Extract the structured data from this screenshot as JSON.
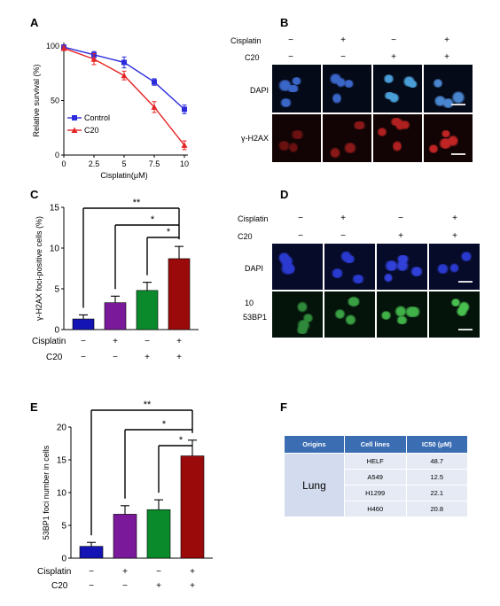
{
  "panels": {
    "A": "A",
    "B": "B",
    "C": "C",
    "D": "D",
    "E": "E",
    "F": "F"
  },
  "chart_data": [
    {
      "type": "line",
      "panel": "A",
      "xlabel": "Cisplatin(μM)",
      "ylabel": "Relative survival (%)",
      "x": [
        0,
        2.5,
        5,
        7.5,
        10
      ],
      "x_ticks": [
        "0",
        "2.5",
        "5",
        "7.5",
        "10"
      ],
      "y_ticks": [
        "0",
        "50",
        "100"
      ],
      "ylim": [
        0,
        100
      ],
      "series": [
        {
          "name": "Control",
          "color": "#2b2bdc",
          "marker": "square",
          "values": [
            99,
            92,
            85,
            67,
            42
          ],
          "errors": [
            2,
            3,
            5,
            3,
            4
          ]
        },
        {
          "name": "C20",
          "color": "#e42525",
          "marker": "triangle",
          "values": [
            98,
            88,
            73,
            44,
            9
          ],
          "errors": [
            2,
            5,
            4,
            5,
            4
          ]
        }
      ],
      "legend_position": "bottom-left"
    },
    {
      "type": "bar",
      "panel": "C",
      "ylabel": "γ-H2AX foci-positive cells (%)",
      "ylim": [
        0,
        15
      ],
      "y_ticks": [
        "0",
        "5",
        "10",
        "15"
      ],
      "values": [
        1.3,
        3.3,
        4.8,
        8.7
      ],
      "errors": [
        0.5,
        0.8,
        1.0,
        1.5
      ],
      "colors": [
        "#1414b4",
        "#7a1a9a",
        "#0a8a2a",
        "#9a0a0a"
      ],
      "row_labels": [
        "Cisplatin",
        "C20"
      ],
      "cisplatin": [
        "−",
        "+",
        "−",
        "+"
      ],
      "c20": [
        "−",
        "−",
        "+",
        "+"
      ],
      "significance": [
        "**",
        "*",
        "*"
      ]
    },
    {
      "type": "bar",
      "panel": "E",
      "ylabel": "53BP1 foci number in cells",
      "ylim": [
        0,
        20
      ],
      "y_ticks": [
        "0",
        "5",
        "10",
        "15",
        "20"
      ],
      "values": [
        1.8,
        6.7,
        7.4,
        15.6
      ],
      "errors": [
        0.6,
        1.3,
        1.5,
        2.4
      ],
      "colors": [
        "#1414b4",
        "#7a1a9a",
        "#0a8a2a",
        "#9a0a0a"
      ],
      "row_labels": [
        "Cisplatin",
        "C20"
      ],
      "cisplatin": [
        "−",
        "+",
        "−",
        "+"
      ],
      "c20": [
        "−",
        "−",
        "+",
        "+"
      ],
      "significance": [
        "**",
        "*",
        "*"
      ]
    }
  ],
  "panelB": {
    "row_labels": [
      "Cisplatin",
      "C20"
    ],
    "cisplatin": [
      "−",
      "+",
      "−",
      "+"
    ],
    "c20": [
      "−",
      "−",
      "+",
      "+"
    ],
    "image_labels": [
      "DAPI",
      "γ-H2AX"
    ]
  },
  "panelD": {
    "row_labels": [
      "Cisplatin",
      "C20"
    ],
    "cisplatin": [
      "−",
      "+",
      "−",
      "+"
    ],
    "c20": [
      "−",
      "−",
      "+",
      "+"
    ],
    "image_labels": [
      "DAPI",
      "10",
      "53BP1"
    ]
  },
  "table": {
    "headers": [
      "Origins",
      "Cell lines",
      "IC50 (μM)"
    ],
    "origin": "Lung",
    "rows": [
      {
        "cell_line": "HELF",
        "ic50": "48.7"
      },
      {
        "cell_line": "A549",
        "ic50": "12.5"
      },
      {
        "cell_line": "H1299",
        "ic50": "22.1"
      },
      {
        "cell_line": "H460",
        "ic50": "20.8"
      }
    ]
  }
}
